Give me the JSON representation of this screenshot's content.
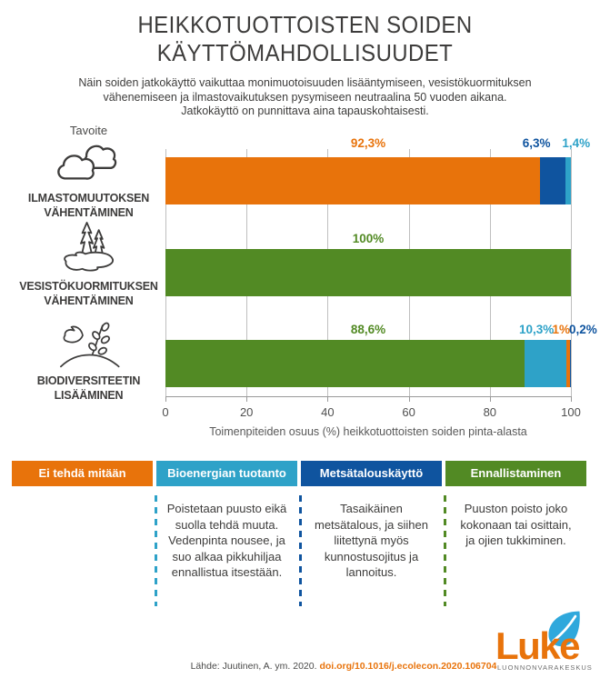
{
  "title": {
    "line1": "HEIKKOTUOTTOISTEN SOIDEN",
    "line2": "KÄYTTÖMAHDOLLISUUDET"
  },
  "subtitle": {
    "lines": [
      "Näin soiden jatkokäyttö vaikuttaa monimuotoisuuden lisääntymiseen, vesistökuormituksen",
      "vähenemiseen ja ilmastovaikutuksen pysymiseen neutraalina 50 vuoden aikana.",
      "Jatkokäyttö on punnittava aina tapauskohtaisesti."
    ]
  },
  "tavoite_label": "Tavoite",
  "colors": {
    "orange": "#E8730B",
    "light_blue": "#2EA2C8",
    "dark_blue": "#0F549F",
    "green": "#528A24",
    "text_dark": "#3D3C3B",
    "grid": "#BFBFBF",
    "leaf_blue": "#2FA8DC"
  },
  "chart_data": {
    "type": "bar",
    "orientation": "horizontal",
    "stacked": true,
    "xlabel": "Toimenpiteiden osuus (%) heikkotuottoisten soiden pinta-alasta",
    "xlim": [
      0,
      100
    ],
    "xticks": [
      "0",
      "20",
      "40",
      "60",
      "80",
      "100"
    ],
    "categories": [
      {
        "icon": "clouds-icon",
        "label_lines": [
          "ILMASTOMUUTOKSEN",
          "VÄHENTÄMINEN"
        ]
      },
      {
        "icon": "pond-trees-icon",
        "label_lines": [
          "VESISTÖKUORMITUKSEN",
          "VÄHENTÄMINEN"
        ]
      },
      {
        "icon": "bird-plant-icon",
        "label_lines": [
          "BIODIVERSITEETIN",
          "LISÄÄMINEN"
        ]
      }
    ],
    "bars": [
      {
        "segments": [
          {
            "name": "Ei tehdä mitään",
            "value": 92.3,
            "color": "orange"
          },
          {
            "name": "Metsätalouskäyttö",
            "value": 6.3,
            "color": "dark_blue"
          },
          {
            "name": "Bioenergian tuotanto",
            "value": 1.4,
            "color": "light_blue"
          }
        ],
        "labels": [
          {
            "text": "92,3%",
            "x_pct": 50,
            "color": "orange"
          },
          {
            "text": "6,3%",
            "x_pct": 91.5,
            "color": "dark_blue"
          },
          {
            "text": "1,4%",
            "x_pct": 101.3,
            "color": "light_blue"
          }
        ]
      },
      {
        "segments": [
          {
            "name": "Ennallistaminen",
            "value": 100,
            "color": "green"
          }
        ],
        "labels": [
          {
            "text": "100%",
            "x_pct": 50,
            "color": "green"
          }
        ]
      },
      {
        "segments": [
          {
            "name": "Ennallistaminen",
            "value": 88.6,
            "color": "green"
          },
          {
            "name": "Bioenergian tuotanto",
            "value": 10.3,
            "color": "light_blue"
          },
          {
            "name": "Ei tehdä mitään",
            "value": 1,
            "color": "orange"
          },
          {
            "name": "Metsätalouskäyttö",
            "value": 0.2,
            "color": "dark_blue"
          }
        ],
        "labels": [
          {
            "text": "88,6%",
            "x_pct": 50,
            "color": "green"
          },
          {
            "text": "10,3%",
            "x_pct": 91.5,
            "color": "light_blue"
          },
          {
            "text": "1%",
            "x_pct": 97.6,
            "color": "orange"
          },
          {
            "text": "0,2%",
            "x_pct": 103,
            "color": "dark_blue"
          }
        ]
      }
    ]
  },
  "legend": {
    "columns": [
      {
        "title": "Ei tehdä mitään",
        "color": "orange",
        "description": ""
      },
      {
        "title": "Bioenergian tuotanto",
        "color": "light_blue",
        "description": "Poistetaan puusto eikä suolla tehdä muuta. Vedenpinta nousee, ja suo alkaa pikkuhiljaa ennallistua itsestään."
      },
      {
        "title": "Metsätalouskäyttö",
        "color": "dark_blue",
        "description": "Tasaikäinen metsätalous, ja siihen liitettynä myös kunnostusojitus ja lannoitus."
      },
      {
        "title": "Ennallistaminen",
        "color": "green",
        "description": "Puuston poisto joko kokonaan tai osittain, ja ojien tukkiminen."
      }
    ]
  },
  "source": {
    "prefix": "Lähde: Juutinen, A. ym. 2020. ",
    "doi_link": "doi.org/10.1016/j.ecolecon.2020.106704"
  },
  "logo": {
    "wordmark": "Luke",
    "org_name": "LUONNONVARAKESKUS"
  }
}
